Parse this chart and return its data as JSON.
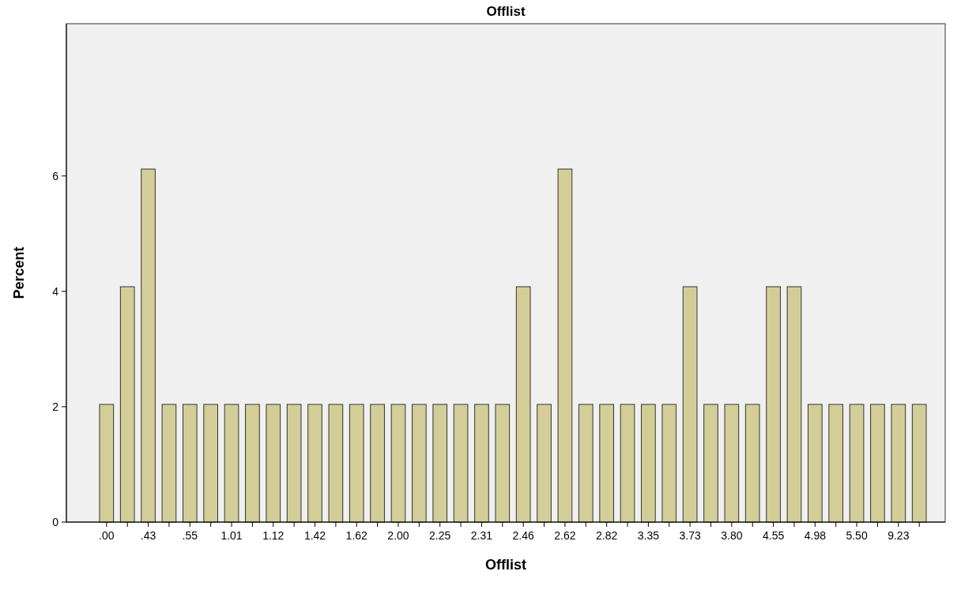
{
  "chart_data": {
    "type": "bar",
    "title": "Offlist",
    "xlabel": "Offlist",
    "ylabel": "Percent",
    "categories": [
      ".00",
      null,
      ".43",
      null,
      ".55",
      null,
      "1.01",
      null,
      "1.12",
      null,
      "1.42",
      null,
      "1.62",
      null,
      "2.00",
      null,
      "2.25",
      null,
      "2.31",
      null,
      "2.46",
      null,
      "2.62",
      null,
      "2.82",
      null,
      "3.35",
      null,
      "3.73",
      null,
      "3.80",
      null,
      "4.55",
      null,
      "4.98",
      null,
      "5.50",
      null,
      "9.23",
      null
    ],
    "values": [
      2.04,
      4.08,
      6.12,
      2.04,
      2.04,
      2.04,
      2.04,
      2.04,
      2.04,
      2.04,
      2.04,
      2.04,
      2.04,
      2.04,
      2.04,
      2.04,
      2.04,
      2.04,
      2.04,
      2.04,
      4.08,
      2.04,
      6.12,
      2.04,
      2.04,
      2.04,
      2.04,
      2.04,
      4.08,
      2.04,
      2.04,
      2.04,
      4.08,
      4.08,
      2.04,
      2.04,
      2.04,
      2.04,
      2.04,
      2.04
    ],
    "color": "#d3ce97",
    "ylim": [
      0,
      8.64
    ],
    "yticks": [
      0,
      2,
      4,
      6
    ],
    "grid": false
  }
}
